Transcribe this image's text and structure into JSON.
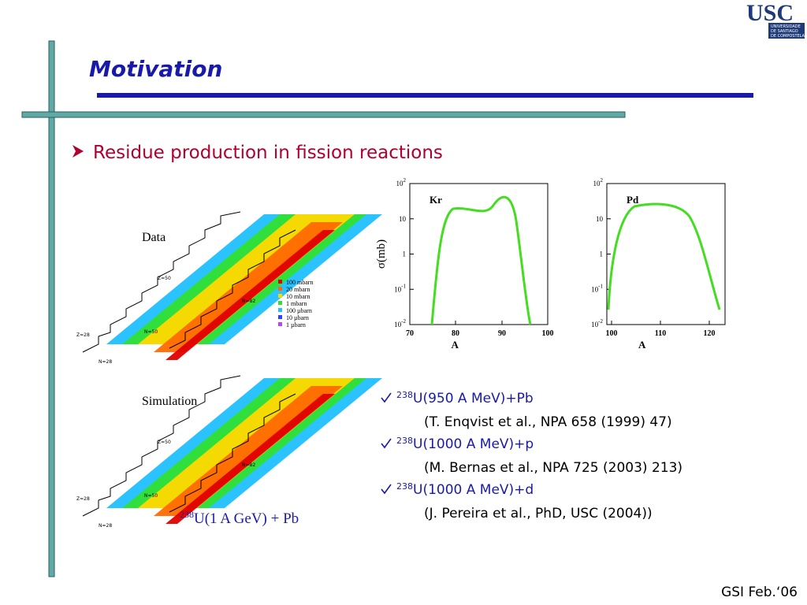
{
  "header": {
    "title": "Motivation",
    "logo": {
      "text": "USC",
      "lines": [
        "UNIVERSIDADE",
        "DE SANTIAGO",
        "DE COMPOSTELA"
      ]
    }
  },
  "bullet": "Residue production in fission reactions",
  "nuclide_charts": [
    {
      "label": "Data",
      "legend": [
        "100  mbarn",
        "20  mbarn",
        "10  mbarn",
        "1  mbarn",
        "100  µbarn",
        "10  µbarn",
        "1  µbarn"
      ],
      "marks": [
        "Z=50",
        "N=82",
        "Z=28",
        "N=50",
        "N=28"
      ]
    },
    {
      "label": "Simulation",
      "marks": [
        "Z=50",
        "N=82",
        "Z=28",
        "N=50",
        "N=28"
      ]
    }
  ],
  "caption": {
    "mass": "238",
    "text": "U(1 A GeV) + Pb"
  },
  "plots": [
    {
      "label": "Kr",
      "ylabel": "σ(mb)",
      "xlabel": "A",
      "yticks": [
        {
          "base": "10",
          "exp": "2"
        },
        {
          "base": "10",
          "exp": ""
        },
        {
          "base": "1",
          "exp": ""
        },
        {
          "base": "10",
          "exp": "-1"
        },
        {
          "base": "10",
          "exp": "-2"
        }
      ],
      "xticks": [
        "70",
        "80",
        "90",
        "100"
      ]
    },
    {
      "label": "Pd",
      "xlabel": "A",
      "yticks": [
        {
          "base": "10",
          "exp": "2"
        },
        {
          "base": "10",
          "exp": ""
        },
        {
          "base": "1",
          "exp": ""
        },
        {
          "base": "10",
          "exp": "-1"
        },
        {
          "base": "10",
          "exp": "-2"
        }
      ],
      "xticks": [
        "100",
        "110",
        "120"
      ]
    }
  ],
  "reactions": [
    {
      "mass": "238",
      "text": "U(950 A MeV)+Pb",
      "ref": "(T. Enqvist et al., NPA 658 (1999) 47)"
    },
    {
      "mass": "238",
      "text": "U(1000 A MeV)+p",
      "ref": "(M. Bernas et al., NPA 725 (2003) 213)"
    },
    {
      "mass": "238",
      "text": "U(1000 A MeV)+d",
      "ref": "(J. Pereira et al., PhD, USC (2004))"
    }
  ],
  "footer": "GSI Feb.‘06"
}
